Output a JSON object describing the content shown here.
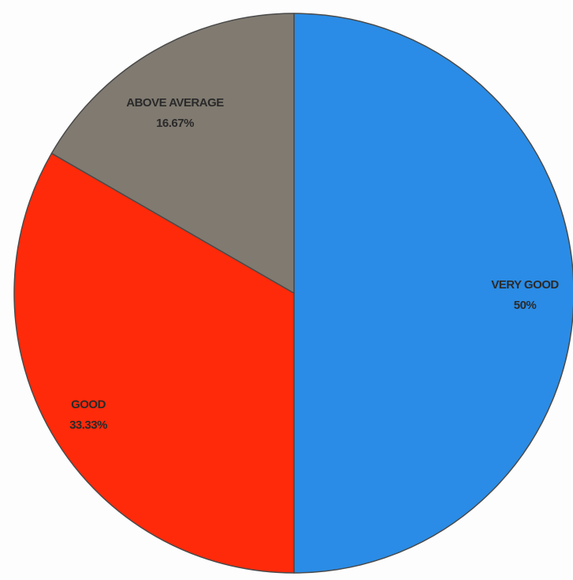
{
  "chart_data": {
    "type": "pie",
    "title": "",
    "slices": [
      {
        "label": "VERY GOOD",
        "value": 50,
        "value_label": "50%",
        "color": "#2a8ce6"
      },
      {
        "label": "GOOD",
        "value": 33.33,
        "value_label": "33.33%",
        "color": "#ff2a0a"
      },
      {
        "label": "ABOVE AVERAGE",
        "value": 16.67,
        "value_label": "16.67%",
        "color": "#807a70"
      }
    ],
    "start_direction": "top",
    "direction": "clockwise",
    "legend": "none",
    "labels_on_slices": true
  }
}
